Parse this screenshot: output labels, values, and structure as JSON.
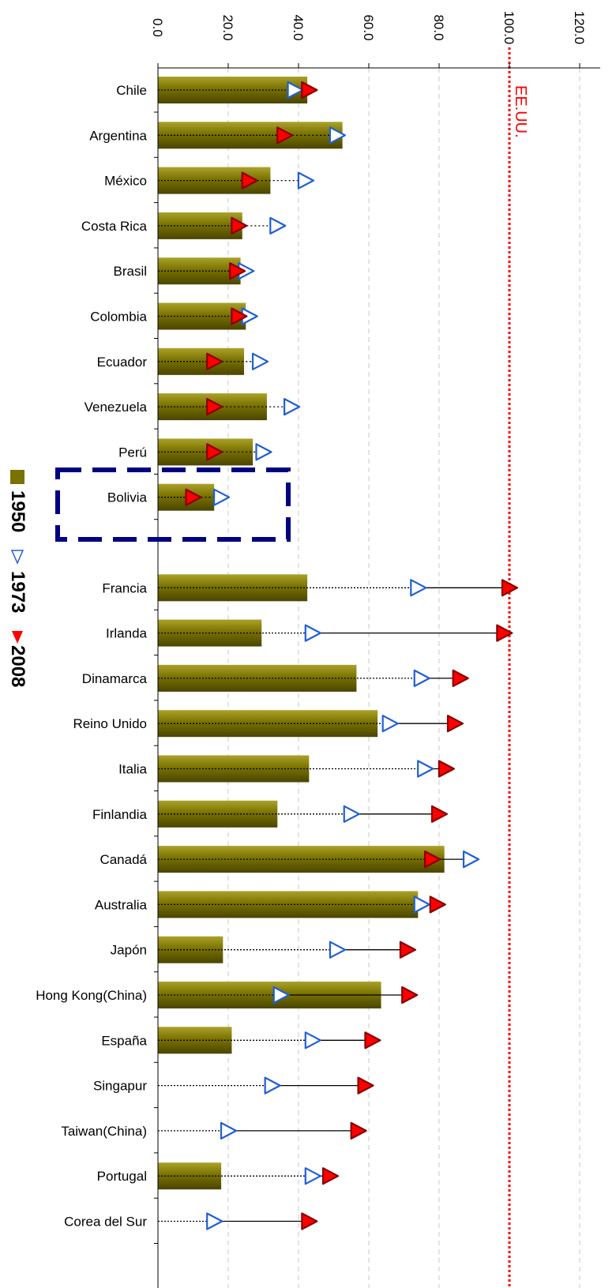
{
  "chart_data": {
    "type": "bar",
    "orientation": "horizontal",
    "xlim": [
      0,
      120
    ],
    "x_ticks": [
      "0.0",
      "20.0",
      "40.0",
      "60.0",
      "80.0",
      "100.0",
      "120.0"
    ],
    "grid": "vertical dashed",
    "reference_line": {
      "label": "EE.UU.",
      "value": 100,
      "color": "#ff0000"
    },
    "categories": [
      "Chile",
      "Argentina",
      "México",
      "Costa Rica",
      "Brasil",
      "Colombia",
      "Ecuador",
      "Venezuela",
      "Perú",
      "Bolivia",
      "Francia",
      "Irlanda",
      "Dinamarca",
      "Reino Unido",
      "Italia",
      "Finlandia",
      "Canadá",
      "Australia",
      "Japón",
      "Hong Kong(China)",
      "España",
      "Singapur",
      "Taiwan(China)",
      "Portugal",
      "Corea del Sur"
    ],
    "series": [
      {
        "name": "1950",
        "marker": "bar",
        "color": "#7a7200",
        "values": [
          42.5,
          52.5,
          32,
          24,
          23.5,
          25,
          24.5,
          31,
          27,
          16,
          42.5,
          29.5,
          56.5,
          62.5,
          43,
          34,
          81.5,
          74,
          18.5,
          63.5,
          21,
          null,
          null,
          18,
          null
        ]
      },
      {
        "name": "1973",
        "marker": "open-triangle",
        "color": "#1f5fd6",
        "values": [
          39,
          51,
          42,
          34,
          25,
          26,
          29,
          38,
          30,
          18,
          74,
          44,
          75,
          66,
          76,
          55,
          89,
          75,
          51,
          35,
          44,
          32.5,
          20,
          44,
          16
        ]
      },
      {
        "name": "2008",
        "marker": "filled-triangle",
        "color": "#ff0000",
        "values": [
          43,
          36,
          26,
          23,
          22.5,
          23,
          16,
          16,
          16,
          10,
          100,
          98.5,
          86,
          84.5,
          82,
          80,
          78,
          79.5,
          71,
          71.5,
          61,
          59,
          57,
          49,
          43
        ]
      }
    ],
    "legend": {
      "placement": "left",
      "entries": [
        "1950",
        "1973",
        "2008"
      ]
    },
    "annotation": "dashed box around Bolivia"
  }
}
